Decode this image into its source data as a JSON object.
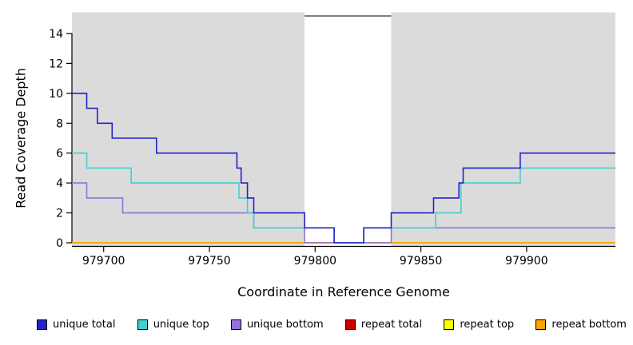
{
  "chart_data": {
    "type": "line",
    "subtype": "step-coverage",
    "xlabel": "Coordinate in Reference Genome",
    "ylabel": "Read Coverage Depth",
    "xlim": [
      979685,
      979942
    ],
    "ylim": [
      0,
      14
    ],
    "x_ticks": [
      979700,
      979750,
      979800,
      979850,
      979900
    ],
    "y_ticks": [
      0,
      2,
      4,
      6,
      8,
      10,
      12,
      14
    ],
    "plot_background": "#DBDBDB",
    "shaded_regions": [
      [
        979685,
        979795
      ],
      [
        979836,
        979942
      ]
    ],
    "white_gap_region": [
      979795,
      979836
    ],
    "grid": "off",
    "legend_position": "bottom",
    "draw_order": [
      3,
      4,
      5,
      2,
      1,
      0
    ],
    "series": [
      {
        "name": "unique total",
        "color": "#2222CC",
        "step_points": [
          [
            979685,
            10
          ],
          [
            979692,
            9
          ],
          [
            979697,
            8
          ],
          [
            979704,
            7
          ],
          [
            979725,
            6
          ],
          [
            979763,
            5
          ],
          [
            979765,
            4
          ],
          [
            979768,
            3
          ],
          [
            979771,
            2
          ],
          [
            979795,
            1
          ],
          [
            979809,
            0
          ],
          [
            979823,
            1
          ],
          [
            979836,
            2
          ],
          [
            979856,
            3
          ],
          [
            979868,
            4
          ],
          [
            979870,
            5
          ],
          [
            979897,
            6
          ],
          [
            979942,
            6
          ]
        ]
      },
      {
        "name": "unique top",
        "color": "#40D0D0",
        "step_points": [
          [
            979685,
            6
          ],
          [
            979692,
            5
          ],
          [
            979713,
            4
          ],
          [
            979764,
            3
          ],
          [
            979768,
            2
          ],
          [
            979771,
            1
          ],
          [
            979809,
            0
          ],
          [
            979823,
            1
          ],
          [
            979857,
            2
          ],
          [
            979869,
            4
          ],
          [
            979897,
            5
          ],
          [
            979942,
            5
          ]
        ]
      },
      {
        "name": "unique bottom",
        "color": "#9370DB",
        "step_points": [
          [
            979685,
            4
          ],
          [
            979692,
            3
          ],
          [
            979709,
            2
          ],
          [
            979771,
            1
          ],
          [
            979795,
            0
          ],
          [
            979836,
            1
          ],
          [
            979942,
            1
          ]
        ]
      },
      {
        "name": "repeat total",
        "color": "#CC0000",
        "step_points": [
          [
            979685,
            0
          ],
          [
            979942,
            0
          ]
        ]
      },
      {
        "name": "repeat top",
        "color": "#FFFF00",
        "step_points": [
          [
            979685,
            0
          ],
          [
            979942,
            0
          ]
        ]
      },
      {
        "name": "repeat bottom",
        "color": "#FFA500",
        "step_points": [
          [
            979685,
            0
          ],
          [
            979942,
            0
          ]
        ]
      }
    ]
  }
}
